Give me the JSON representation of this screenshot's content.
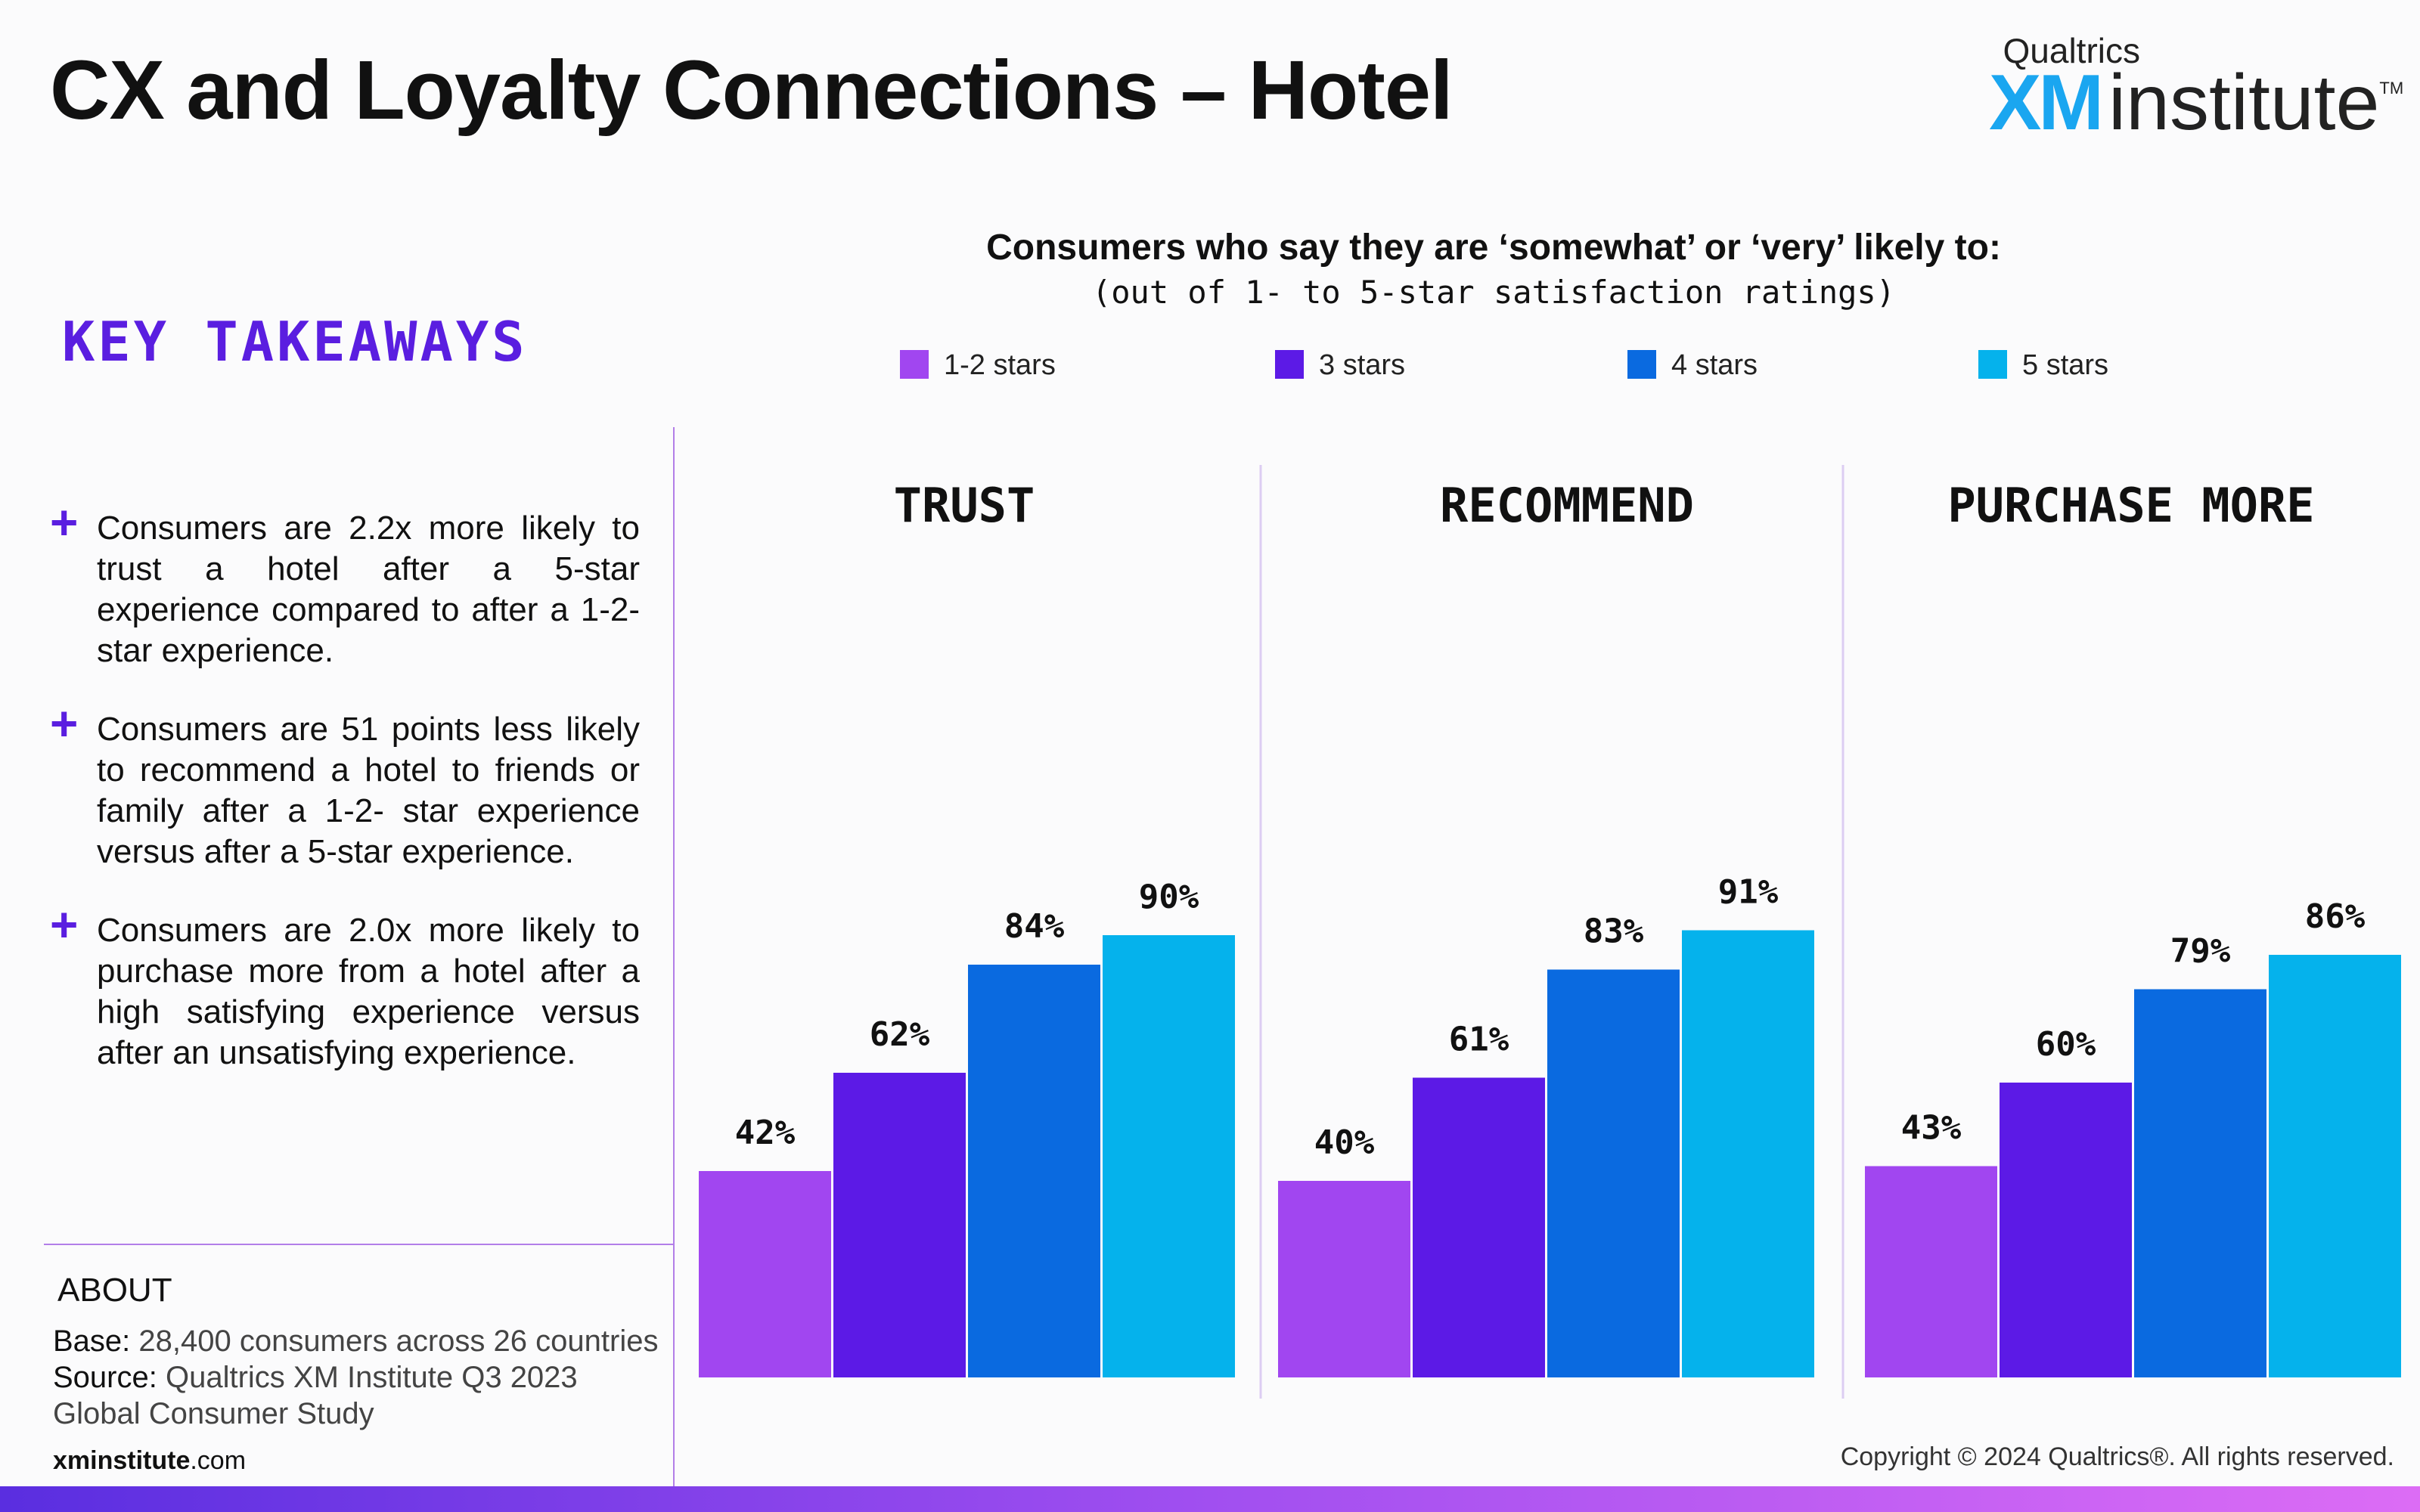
{
  "page": {
    "title": "CX and Loyalty Connections – Hotel",
    "logo_top": "Qualtrics",
    "logo_xm": "XM",
    "logo_institute": "institute",
    "logo_tm": "TM",
    "key_takeaways": "KEY TAKEAWAYS",
    "takeaways": [
      "Consumers are 2.2x more likely to trust a hotel after a 5-star experience compared to after a 1-2-star experience.",
      "Consumers are 51 points less likely to recommend a hotel to friends or family after a 1-2- star experience versus after a 5-star experience.",
      "Consumers are 2.0x more likely to purchase more from a hotel after a high satisfying experience versus after an unsatisfying experience."
    ],
    "plus": "+",
    "about_heading": "ABOUT",
    "base_label": "Base:",
    "base_text": "28,400 consumers across 26 countries",
    "source_label": "Source:",
    "source_text": "Qualtrics XM Institute Q3 2023 Global Consumer Study",
    "site_bold": "xminstitute",
    "site_rest": ".com",
    "copyright": "Copyright © 2024 Qualtrics®. All rights reserved."
  },
  "chart_data": {
    "type": "bar",
    "title": "Consumers who say they are ‘somewhat’ or ‘very’ likely to:",
    "subtitle": "(out of 1- to 5-star satisfaction ratings)",
    "legend_position": "top",
    "groups": [
      "TRUST",
      "RECOMMEND",
      "PURCHASE MORE"
    ],
    "series": [
      {
        "name": "1-2 stars",
        "color": "#a146f0",
        "values": [
          42,
          40,
          43
        ]
      },
      {
        "name": "3 stars",
        "color": "#5c1ae6",
        "values": [
          62,
          61,
          60
        ]
      },
      {
        "name": "4 stars",
        "color": "#0a6ae0",
        "values": [
          84,
          83,
          79
        ]
      },
      {
        "name": "5 stars",
        "color": "#05b2ec",
        "values": [
          90,
          91,
          86
        ]
      }
    ],
    "value_suffix": "%",
    "ylim": [
      0,
      100
    ],
    "grid": false
  }
}
